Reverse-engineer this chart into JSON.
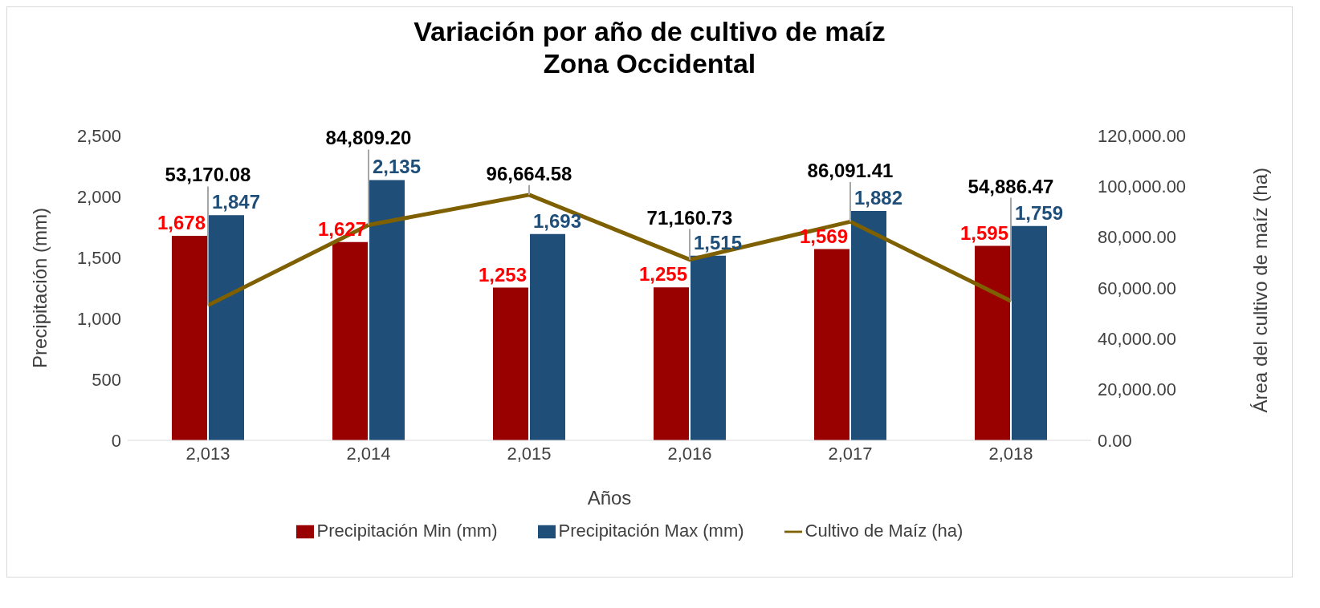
{
  "chart_data": {
    "type": "bar",
    "title": "Variación por año de cultivo de maíz",
    "subtitle": "Zona Occidental",
    "xlabel": "Años",
    "ylabel": "Precipitación (mm)",
    "y2label": "Área del cultivo de maíz (ha)",
    "categories": [
      "2,013",
      "2,014",
      "2,015",
      "2,016",
      "2,017",
      "2,018"
    ],
    "series": [
      {
        "name": "Precipitación Min (mm)",
        "color": "#990000",
        "values": [
          1678,
          1627,
          1253,
          1255,
          1569,
          1595
        ],
        "value_labels": [
          "1,678",
          "1,627",
          "1,253",
          "1,255",
          "1,569",
          "1,595"
        ]
      },
      {
        "name": "Precipitación Max (mm)",
        "color": "#1f4e79",
        "values": [
          1847,
          2135,
          1693,
          1515,
          1882,
          1759
        ],
        "value_labels": [
          "1,847",
          "2,135",
          "1,693",
          "1,515",
          "1,882",
          "1,759"
        ]
      },
      {
        "name": "Cultivo de Maíz (ha)",
        "type": "line",
        "axis": "y2",
        "color": "#7f6000",
        "values": [
          53170.08,
          84809.2,
          96664.58,
          71160.73,
          86091.41,
          54886.47
        ],
        "value_labels": [
          "53,170.08",
          "84,809.20",
          "96,664.58",
          "71,160.73",
          "86,091.41",
          "54,886.47"
        ]
      }
    ],
    "ylim": [
      0,
      2500
    ],
    "yticks": [
      0,
      {
        "value": 500,
        "label": "500"
      },
      {
        "value": 1000,
        "label": "1,000"
      },
      {
        "value": 1500,
        "label": "1,500"
      },
      {
        "value": 2000,
        "label": "2,000"
      },
      {
        "value": 2500,
        "label": "2,500"
      }
    ],
    "y2lim": [
      0,
      120000
    ],
    "y2ticks": [
      {
        "value": 0,
        "label": "0.00"
      },
      {
        "value": 20000,
        "label": "20,000.00"
      },
      {
        "value": 40000,
        "label": "40,000.00"
      },
      {
        "value": 60000,
        "label": "60,000.00"
      },
      {
        "value": 80000,
        "label": "80,000.00"
      },
      {
        "value": 100000,
        "label": "100,000.00"
      },
      {
        "value": 120000,
        "label": "120,000.00"
      }
    ],
    "legend": "bottom",
    "grid": false,
    "marker": "none",
    "line_style": "solid"
  }
}
